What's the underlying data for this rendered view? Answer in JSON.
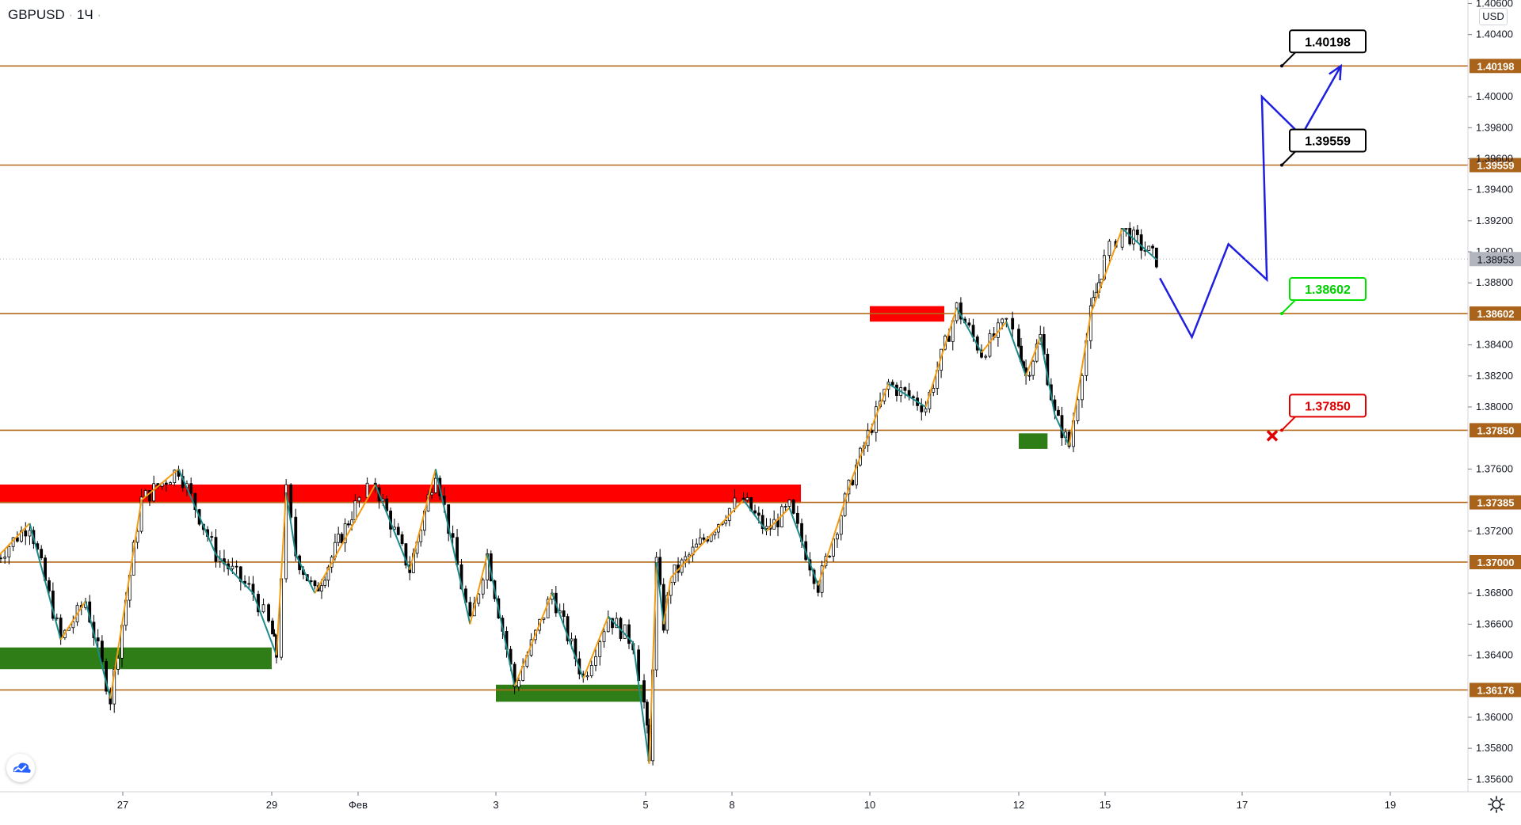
{
  "header": {
    "symbol": "GBPUSD",
    "separator": "·",
    "interval": "1Ч",
    "extra": "·"
  },
  "currency_label": "USD",
  "icons": {
    "logo": "tradingview-cloud-icon",
    "settings": "gear-icon",
    "target": "cross-icon"
  },
  "colors": {
    "level_line": "#b36a1c",
    "level_label_bg": "#a9631b",
    "resistance_zone": "#ff0000",
    "support_zone": "#2e7d17",
    "projection": "#1f1fe0",
    "zigzag_up": "#f39c12",
    "zigzag_down": "#1d8a8a",
    "candle": "#000000",
    "current_price_bg": "#b2b5be"
  },
  "chart_data": {
    "type": "candlestick",
    "symbol": "GBPUSD",
    "timeframe": "1Ч",
    "ylim": [
      1.3552,
      1.40623
    ],
    "y_ticks": [
      "1.40600",
      "1.40400",
      "1.40000",
      "1.39800",
      "1.39600",
      "1.39400",
      "1.39200",
      "1.39000",
      "1.38800",
      "1.38400",
      "1.38200",
      "1.38000",
      "1.37600",
      "1.37200",
      "1.36800",
      "1.36600",
      "1.36400",
      "1.36000",
      "1.35800",
      "1.35600"
    ],
    "x_ticks": [
      "27",
      "29",
      "Фев",
      "3",
      "5",
      "8",
      "10",
      "12",
      "15",
      "17",
      "19"
    ],
    "current_price": "1.38953",
    "levels": [
      "1.40198",
      "1.39559",
      "1.38602",
      "1.37850",
      "1.37385",
      "1.37000",
      "1.36176"
    ],
    "callouts": [
      {
        "value": "1.40198",
        "style": "black"
      },
      {
        "value": "1.39559",
        "style": "black"
      },
      {
        "value": "1.38602",
        "style": "green"
      },
      {
        "value": "1.37850",
        "style": "red"
      }
    ],
    "zones": [
      {
        "kind": "resistance",
        "from_time": "Jan 25",
        "to_time": "Feb 9",
        "top": 1.375,
        "bottom": 1.3738
      },
      {
        "kind": "support",
        "from_time": "Jan 25",
        "to_time": "Jan 29",
        "top": 1.3645,
        "bottom": 1.3631
      },
      {
        "kind": "support",
        "from_time": "Feb 3",
        "to_time": "Feb 5",
        "top": 1.3621,
        "bottom": 1.361
      },
      {
        "kind": "resistance",
        "from_time": "Feb 10",
        "to_time": "Feb 11",
        "top": 1.3865,
        "bottom": 1.3855
      },
      {
        "kind": "support",
        "from_time": "Feb 12",
        "to_time": "Feb 13",
        "top": 1.3783,
        "bottom": 1.3773
      }
    ],
    "price_path": [
      [
        "Jan 25",
        1.37
      ],
      [
        "Jan 25",
        1.3725
      ],
      [
        "Jan 26",
        1.365
      ],
      [
        "Jan 26",
        1.3675
      ],
      [
        "Jan 26",
        1.3612
      ],
      [
        "Jan 27",
        1.374
      ],
      [
        "Jan 27",
        1.376
      ],
      [
        "Jan 28",
        1.3705
      ],
      [
        "Jan 28",
        1.368
      ],
      [
        "Jan 29",
        1.364
      ],
      [
        "Jan 29",
        1.3745
      ],
      [
        "Jan 29",
        1.3705
      ],
      [
        "Jan 30",
        1.368
      ],
      [
        "Feb 1",
        1.375
      ],
      [
        "Feb 1",
        1.3695
      ],
      [
        "Feb 2",
        1.376
      ],
      [
        "Feb 2",
        1.371
      ],
      [
        "Feb 2",
        1.366
      ],
      [
        "Feb 2",
        1.3705
      ],
      [
        "Feb 3",
        1.362
      ],
      [
        "Feb 3",
        1.368
      ],
      [
        "Feb 4",
        1.3625
      ],
      [
        "Feb 4",
        1.3665
      ],
      [
        "Feb 4",
        1.3648
      ],
      [
        "Feb 5",
        1.357
      ],
      [
        "Feb 5",
        1.37
      ],
      [
        "Feb 5",
        1.366
      ],
      [
        "Feb 5",
        1.369
      ],
      [
        "Feb 8",
        1.374
      ],
      [
        "Feb 8",
        1.372
      ],
      [
        "Feb 8",
        1.3735
      ],
      [
        "Feb 9",
        1.3685
      ],
      [
        "Feb 9",
        1.3755
      ],
      [
        "Feb 10",
        1.3815
      ],
      [
        "Feb 10",
        1.38
      ],
      [
        "Feb 11",
        1.3864
      ],
      [
        "Feb 11",
        1.3835
      ],
      [
        "Feb 11",
        1.3855
      ],
      [
        "Feb 12",
        1.382
      ],
      [
        "Feb 12",
        1.3845
      ],
      [
        "Feb 13",
        1.3795
      ],
      [
        "Feb 13",
        1.3775
      ],
      [
        "Feb 14",
        1.386
      ],
      [
        "Feb 15",
        1.3915
      ],
      [
        "Feb 15",
        1.3895
      ]
    ],
    "projection_path": [
      [
        "Feb 15",
        1.3883
      ],
      [
        "Feb 16",
        1.3845
      ],
      [
        "Feb 16",
        1.3905
      ],
      [
        "Feb 16",
        1.3882
      ],
      [
        "Feb 17",
        1.4
      ],
      [
        "Feb 17",
        1.3975
      ],
      [
        "Feb 17",
        1.40198
      ]
    ]
  }
}
